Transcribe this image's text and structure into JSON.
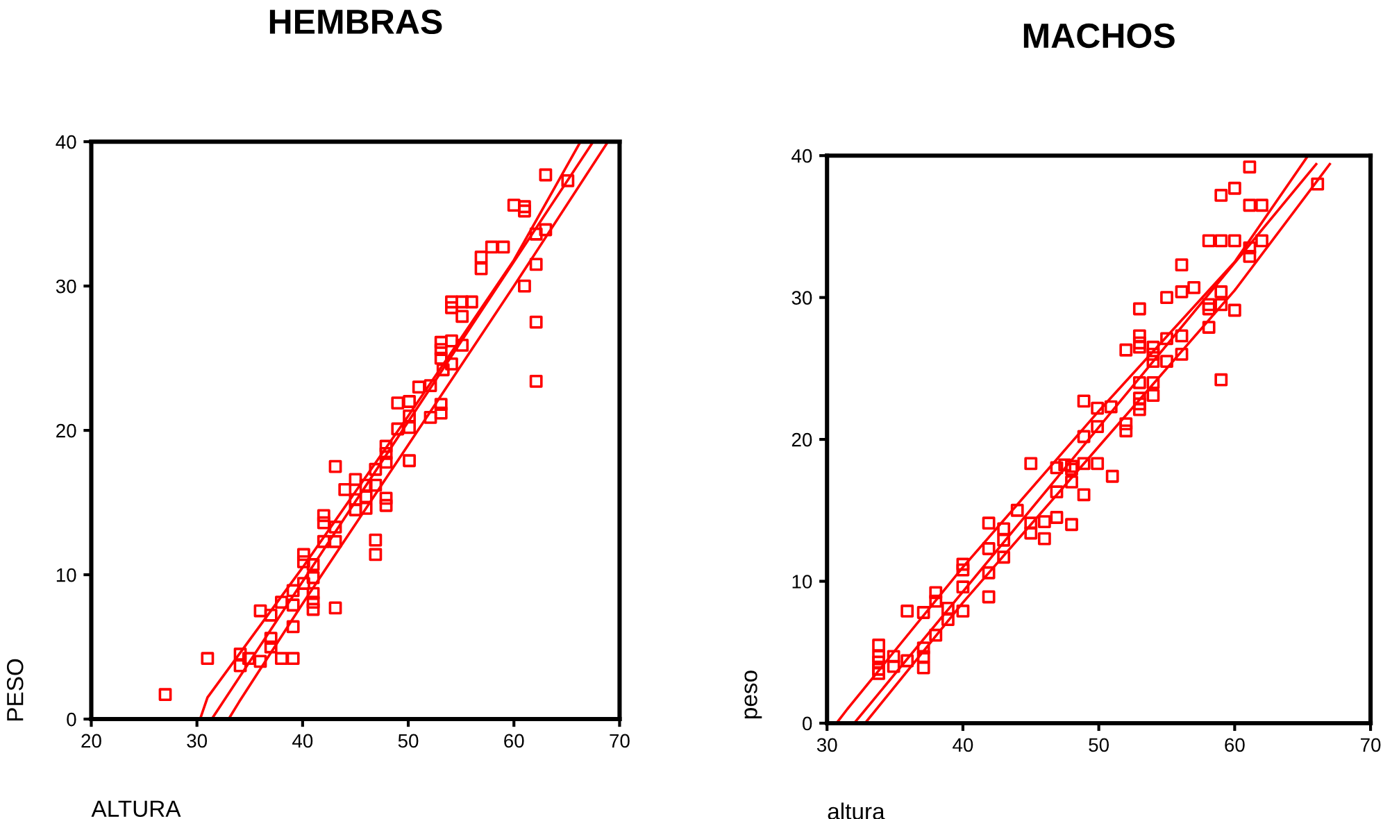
{
  "chart_data": [
    {
      "type": "scatter",
      "title": "HEMBRAS",
      "xlabel": "ALTURA",
      "ylabel": "PESO",
      "xlim": [
        20,
        70
      ],
      "ylim": [
        0,
        40
      ],
      "xticks": [
        20,
        30,
        40,
        50,
        60,
        70
      ],
      "yticks": [
        0,
        10,
        20,
        30,
        40
      ],
      "grid": false,
      "legend": false,
      "series": [
        {
          "marker": "square",
          "color": "#ff0000",
          "x": [
            63.0,
            65.1,
            60.0,
            61.0,
            61.0,
            62.1,
            63.0,
            62.1,
            61.0,
            62.1,
            62.1,
            56.9,
            56.9,
            57.9,
            59.0,
            54.1,
            54.1,
            55.1,
            56.0,
            55.1,
            53.1,
            53.1,
            53.1,
            54.1,
            55.1,
            54.1,
            53.3,
            52.1,
            51.0,
            49.0,
            50.1,
            53.1,
            53.1,
            52.1,
            50.1,
            50.1,
            49.0,
            50.1,
            47.9,
            47.9,
            47.9,
            46.9,
            46.9,
            46.0,
            46.0,
            46.0,
            45.0,
            45.0,
            45.0,
            44.0,
            43.1,
            47.9,
            47.9,
            46.9,
            46.9,
            42.0,
            42.0,
            43.1,
            43.1,
            42.0,
            40.1,
            40.1,
            41.0,
            41.0,
            40.1,
            39.1,
            39.1,
            38.0,
            41.0,
            41.0,
            41.0,
            43.1,
            36.0,
            37.0,
            39.1,
            37.0,
            37.0,
            31.0,
            34.1,
            34.1,
            34.9,
            36.0,
            38.0,
            39.1,
            27.0
          ],
          "values": [
            37.7,
            37.3,
            35.6,
            35.5,
            35.2,
            33.6,
            33.9,
            31.5,
            30.0,
            27.5,
            23.4,
            32.0,
            31.2,
            32.7,
            32.7,
            28.9,
            28.5,
            28.9,
            28.9,
            27.9,
            26.1,
            25.6,
            25.0,
            26.2,
            25.9,
            24.6,
            24.2,
            23.1,
            23.0,
            21.9,
            22.0,
            21.8,
            21.2,
            20.9,
            21.0,
            20.2,
            20.1,
            17.9,
            18.9,
            18.4,
            17.8,
            17.3,
            16.2,
            16.2,
            15.4,
            14.6,
            16.6,
            15.2,
            14.5,
            15.9,
            17.5,
            15.3,
            14.8,
            12.4,
            11.4,
            14.1,
            13.6,
            13.3,
            12.3,
            12.3,
            11.4,
            10.9,
            10.7,
            9.8,
            9.4,
            8.9,
            7.9,
            8.1,
            8.7,
            8.1,
            7.6,
            7.7,
            7.5,
            7.2,
            6.4,
            5.6,
            5.0,
            4.2,
            4.5,
            3.7,
            4.2,
            4.0,
            4.2,
            4.2,
            1.7
          ]
        },
        {
          "type": "line",
          "marker": "none",
          "color": "#ff0000",
          "x": [
            30.3,
            31.0,
            40.0,
            50.0,
            60.0,
            66.3
          ],
          "values": [
            0,
            1.5,
            10.5,
            21.0,
            31.8,
            40
          ]
        },
        {
          "type": "line",
          "marker": "none",
          "color": "#ff0000",
          "x": [
            31.4,
            67.5
          ],
          "values": [
            0,
            40
          ]
        },
        {
          "type": "line",
          "marker": "none",
          "color": "#ff0000",
          "x": [
            33.0,
            34.0,
            40.0,
            50.0,
            60.0,
            68.9
          ],
          "values": [
            0,
            1.2,
            8.0,
            19.0,
            30.0,
            40
          ]
        }
      ]
    },
    {
      "type": "scatter",
      "title": "MACHOS",
      "xlabel": "altura",
      "ylabel": "peso",
      "xlim": [
        30,
        70
      ],
      "ylim": [
        0,
        40
      ],
      "xticks": [
        30,
        40,
        50,
        60,
        70
      ],
      "yticks": [
        0,
        10,
        20,
        30,
        40
      ],
      "grid": false,
      "legend": false,
      "series": [
        {
          "marker": "square",
          "color": "#ff0000",
          "x": [
            61.1,
            66.1,
            59.0,
            60.0,
            61.1,
            62.0,
            58.1,
            59.0,
            60.0,
            62.0,
            61.1,
            61.1,
            56.1,
            57.0,
            56.1,
            55.0,
            59.0,
            58.1,
            58.1,
            59.0,
            60.0,
            58.1,
            53.0,
            53.0,
            53.0,
            53.0,
            52.0,
            54.0,
            54.0,
            54.0,
            55.0,
            55.0,
            56.1,
            56.1,
            59.0,
            53.0,
            54.0,
            54.0,
            53.0,
            53.0,
            53.0,
            48.9,
            49.9,
            50.9,
            49.9,
            52.0,
            52.0,
            48.9,
            45.0,
            46.9,
            47.5,
            48.0,
            48.0,
            48.9,
            49.9,
            51.0,
            48.0,
            46.9,
            48.9,
            44.0,
            41.9,
            45.0,
            46.0,
            46.9,
            48.0,
            45.0,
            46.0,
            43.0,
            43.0,
            43.0,
            41.9,
            41.9,
            41.9,
            40.0,
            40.0,
            40.0,
            40.0,
            38.9,
            38.9,
            38.0,
            38.0,
            38.0,
            35.9,
            37.1,
            37.1,
            37.1,
            37.1,
            35.9,
            34.9,
            34.9,
            33.8,
            33.8,
            33.8,
            33.8,
            33.8
          ],
          "values": [
            39.2,
            38.0,
            37.2,
            37.7,
            36.5,
            36.5,
            34.0,
            34.0,
            34.0,
            34.0,
            33.5,
            32.9,
            32.3,
            30.7,
            30.4,
            30.0,
            30.4,
            29.5,
            29.2,
            29.5,
            29.1,
            27.9,
            29.2,
            27.3,
            26.8,
            26.5,
            26.3,
            26.5,
            26.0,
            25.5,
            27.1,
            25.5,
            27.3,
            26.0,
            24.2,
            24.0,
            24.0,
            23.1,
            22.9,
            22.5,
            22.1,
            22.7,
            22.2,
            22.3,
            20.9,
            21.1,
            20.6,
            20.2,
            18.3,
            18.0,
            18.2,
            18.1,
            17.9,
            18.3,
            18.3,
            17.4,
            17.0,
            16.3,
            16.1,
            15.0,
            14.1,
            14.1,
            14.2,
            14.5,
            14.0,
            13.4,
            13.0,
            13.7,
            12.9,
            11.7,
            12.3,
            10.6,
            8.9,
            11.2,
            10.8,
            9.6,
            7.9,
            8.1,
            7.3,
            9.2,
            8.6,
            6.2,
            7.9,
            7.8,
            5.3,
            4.7,
            3.9,
            4.4,
            4.7,
            4.0,
            5.5,
            4.7,
            4.3,
            3.8,
            3.5
          ]
        },
        {
          "type": "line",
          "marker": "none",
          "color": "#ff0000",
          "x": [
            30.7,
            31.5,
            40.0,
            50.0,
            60.0,
            65.4
          ],
          "values": [
            0,
            1.0,
            11.0,
            22.0,
            32.5,
            40
          ]
        },
        {
          "type": "line",
          "marker": "none",
          "color": "#ff0000",
          "x": [
            32.0,
            66.0
          ],
          "values": [
            0,
            39.4
          ]
        },
        {
          "type": "line",
          "marker": "none",
          "color": "#ff0000",
          "x": [
            32.8,
            40.0,
            50.0,
            60.0,
            67.0
          ],
          "values": [
            0,
            8.5,
            19.5,
            30.5,
            39.4
          ]
        }
      ]
    }
  ]
}
